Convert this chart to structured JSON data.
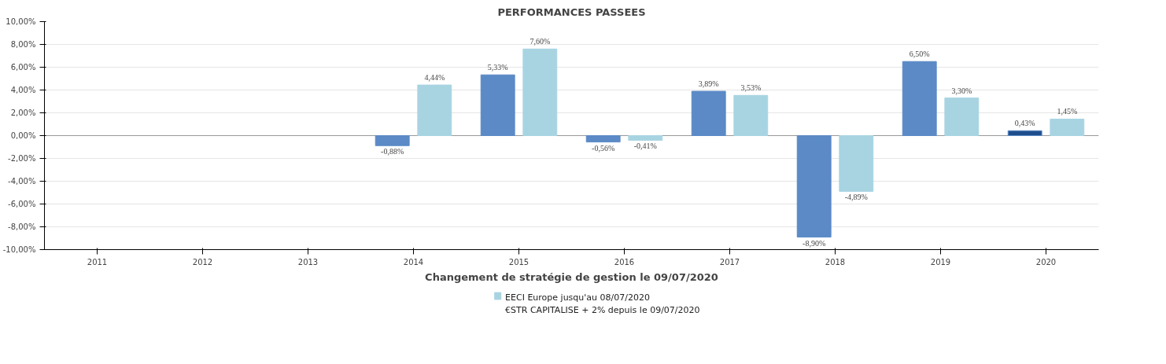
{
  "chart_data": {
    "type": "bar",
    "title": "PERFORMANCES PASSEES",
    "xlabel": "Changement de stratégie de gestion le 09/07/2020",
    "categories": [
      "2011",
      "2012",
      "2013",
      "2014",
      "2015",
      "2016",
      "2017",
      "2018",
      "2019",
      "2020"
    ],
    "series": [
      {
        "color": "#5b8ac6",
        "colors": [
          "#5b8ac6",
          "#5b8ac6",
          "#5b8ac6",
          "#5b8ac6",
          "#5b8ac6",
          "#5b8ac6",
          "#5b8ac6",
          "#5b8ac6",
          "#5b8ac6",
          "#1f4e8c"
        ],
        "values": [
          null,
          null,
          null,
          -0.88,
          5.33,
          -0.56,
          3.89,
          -8.9,
          6.5,
          0.43
        ],
        "value_labels": [
          null,
          null,
          null,
          "-0,88%",
          "5,33%",
          "-0,56%",
          "3,89%",
          "-8,90%",
          "6,50%",
          "0,43%"
        ]
      },
      {
        "name": "EECI Europe jusqu'au 08/07/2020\n€STR CAPITALISE + 2% depuis le 09/07/2020",
        "color": "#a8d4e2",
        "values": [
          null,
          null,
          null,
          4.44,
          7.6,
          -0.41,
          3.53,
          -4.89,
          3.3,
          1.45
        ],
        "value_labels": [
          null,
          null,
          null,
          "4,44%",
          "7,60%",
          "-0,41%",
          "3,53%",
          "-4,89%",
          "3,30%",
          "1,45%"
        ]
      }
    ],
    "ylim": [
      -10,
      10
    ],
    "yticks": [
      {
        "value": -10,
        "label": "-10,00%"
      },
      {
        "value": -8,
        "label": "-8,00%"
      },
      {
        "value": -6,
        "label": "-6,00%"
      },
      {
        "value": -4,
        "label": "-4,00%"
      },
      {
        "value": -2,
        "label": "-2,00%"
      },
      {
        "value": 0,
        "label": "0,00%"
      },
      {
        "value": 2,
        "label": "2,00%"
      },
      {
        "value": 4,
        "label": "4,00%"
      },
      {
        "value": 6,
        "label": "6,00%"
      },
      {
        "value": 8,
        "label": "8,00%"
      },
      {
        "value": 10,
        "label": "10,00%"
      }
    ],
    "grid": "y",
    "legend": "bottom"
  }
}
